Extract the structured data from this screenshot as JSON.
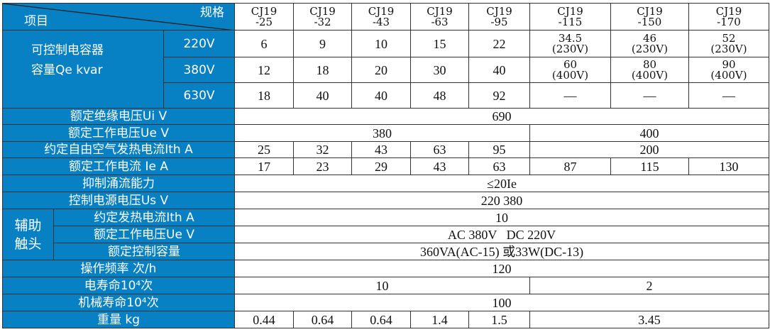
{
  "header": {
    "spec": "规格",
    "item": "项目",
    "models": [
      "CJ19\n-25",
      "CJ19\n-32",
      "CJ19\n-43",
      "CJ19\n-63",
      "CJ19\n-95",
      "CJ19\n-115",
      "CJ19\n-150",
      "CJ19\n-170"
    ]
  },
  "capacitor": {
    "label1": "可控制电容器",
    "label2": "容量Qe kvar",
    "rows": [
      {
        "v": "220V",
        "vals": [
          "6",
          "9",
          "10",
          "15",
          "22",
          "34.5\n(230V)",
          "46\n(230V)",
          "52\n(230V)"
        ]
      },
      {
        "v": "380V",
        "vals": [
          "12",
          "18",
          "20",
          "30",
          "40",
          "60\n(400V)",
          "80\n(400V)",
          "90\n(400V)"
        ]
      },
      {
        "v": "630V",
        "vals": [
          "18",
          "40",
          "40",
          "48",
          "92",
          "—",
          "—",
          "—"
        ]
      }
    ]
  },
  "ui": {
    "label": "额定绝缘电压Ui  V",
    "value": "690"
  },
  "ue": {
    "label": "额定工作电压Ue  V",
    "a": "380",
    "b": "400"
  },
  "ith": {
    "label": "约定自由空气发热电流Ith A",
    "vals": [
      "25",
      "32",
      "43",
      "63",
      "95"
    ],
    "b": "200"
  },
  "ie": {
    "label": "额定工作电流 Ie A",
    "vals": [
      "17",
      "23",
      "29",
      "43",
      "63",
      "87",
      "115",
      "130"
    ]
  },
  "surge": {
    "label": "抑制涌流能力",
    "value": "≤20Ie"
  },
  "us": {
    "label": "控制电源电压Us  V",
    "value": "220 380"
  },
  "aux": {
    "label": "辅助\n触头",
    "ith_label": "约定发热电流Ith  A",
    "ith": "10",
    "ue_label": "额定工作电压Ue  V",
    "ue": "AC 380V   DC 220V",
    "cap_label": "额定控制容量",
    "cap": "360VA(AC-15) 或33W(DC-13)"
  },
  "freq": {
    "label": "操作频率  次/h",
    "value": "120"
  },
  "elife": {
    "label": "电寿命10⁴次",
    "a": "10",
    "b": "2"
  },
  "mlife": {
    "label": "机械寿命10⁴次",
    "value": "100"
  },
  "weight": {
    "label": "重量 kg",
    "vals": [
      "0.44",
      "0.64",
      "0.64",
      "1.4",
      "1.5"
    ],
    "b": "3.45"
  },
  "colors": {
    "header_bg": "#0780c4"
  }
}
